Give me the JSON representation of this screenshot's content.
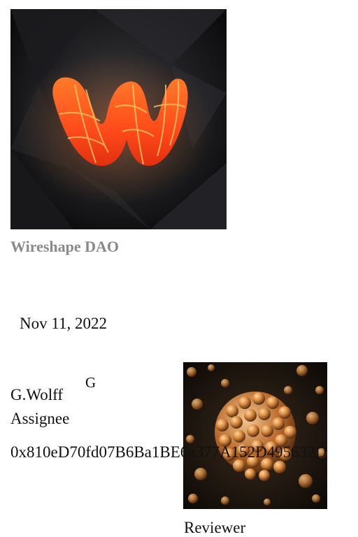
{
  "organization": {
    "name": "Wireshape DAO",
    "logo_icon": "wireshape-w-logo",
    "logo_colors": {
      "background": "#0b0b0c",
      "primary": "#ff5a1f",
      "highlight": "#ffd36b"
    }
  },
  "task": {
    "date": "Nov 11, 2022"
  },
  "assignee": {
    "avatar_letter": "G",
    "name": "G.Wolff",
    "role": "Assignee",
    "wallet_address": "0x810eD70fd07B6Ba1BE6a377A152D495632D"
  },
  "reviewer": {
    "avatar_icon": "molecule-spheres-image",
    "role": "Reviewer"
  }
}
